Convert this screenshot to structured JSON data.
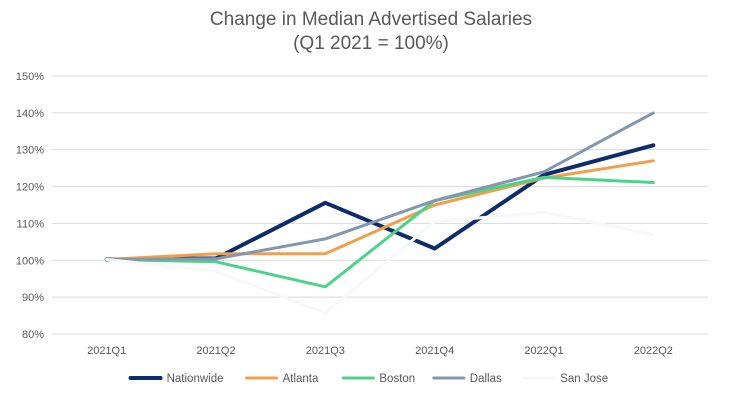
{
  "chart_data": {
    "type": "line",
    "title": "Change in Median Advertised Salaries",
    "subtitle": "(Q1 2021 = 100%)",
    "xlabel": "",
    "ylabel": "",
    "categories": [
      "2021Q1",
      "2021Q2",
      "2021Q3",
      "2021Q4",
      "2022Q1",
      "2022Q2"
    ],
    "ylim": [
      80,
      150
    ],
    "yticks": [
      80,
      90,
      100,
      110,
      120,
      130,
      140,
      150
    ],
    "ytick_labels": [
      "80%",
      "90%",
      "100%",
      "110%",
      "120%",
      "130%",
      "140%",
      "150%"
    ],
    "grid": "horizontal",
    "legend": "bottom",
    "series": [
      {
        "name": "Nationwide",
        "color": "#0d2c6c",
        "values": [
          100.2,
          100.5,
          115.6,
          103.2,
          123.2,
          131.2
        ]
      },
      {
        "name": "Atlanta",
        "color": "#f0a04b",
        "values": [
          100.2,
          101.8,
          101.8,
          115.0,
          122.3,
          127.0
        ]
      },
      {
        "name": "Boston",
        "color": "#4cd38a",
        "values": [
          100.2,
          99.6,
          92.8,
          116.2,
          122.5,
          121.1
        ]
      },
      {
        "name": "Dallas",
        "color": "#8497b0",
        "values": [
          100.2,
          100.4,
          105.8,
          116.2,
          124.0,
          140.0
        ]
      },
      {
        "name": "San Jose",
        "color": "#f7f8fa",
        "values": [
          100.2,
          97.0,
          85.7,
          110.5,
          113.0,
          107.0
        ]
      }
    ]
  }
}
